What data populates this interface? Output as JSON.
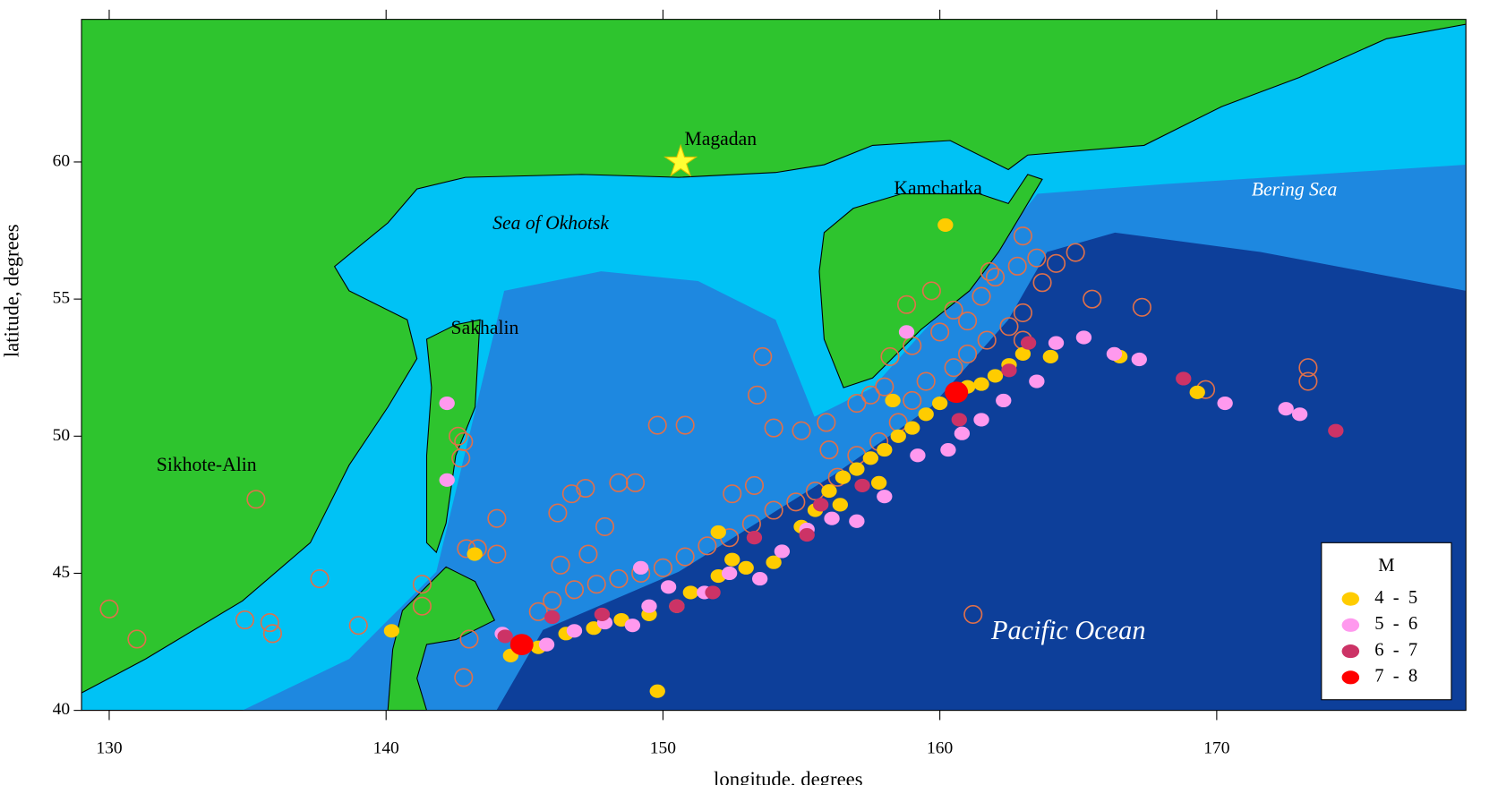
{
  "chart_data": {
    "type": "scatter",
    "xlabel": "longitude, degrees",
    "ylabel": "latitude, degrees",
    "xlim": [
      129,
      179
    ],
    "ylim": [
      40,
      65.2
    ],
    "xticks": [
      130,
      140,
      150,
      160,
      170
    ],
    "yticks": [
      40,
      45,
      50,
      55,
      60
    ],
    "legend_title": "M",
    "legend": "lower right",
    "annotations": [
      "Magadan",
      "Kamchatka",
      "Sea of Okhotsk",
      "Bering Sea",
      "Sakhalin",
      "Sikhote-Alin",
      "Pacific Ocean"
    ],
    "series": [
      {
        "color": "#e0704a",
        "x": [
          130,
          131,
          135.3,
          134.9,
          135.8,
          135.9,
          137.6,
          139,
          141.3,
          141.3,
          142.6,
          142.8,
          142.7,
          142.9,
          143.3,
          144,
          144,
          143,
          142.8,
          146.2,
          146.7,
          147.2,
          148.4,
          149,
          147.9,
          149.8,
          150.8,
          153.4,
          153.6,
          154,
          155,
          155.9,
          157,
          158,
          158.2,
          159,
          158.8,
          159.7,
          160.5,
          161,
          161.5,
          162,
          162.8,
          163,
          163.5,
          164.2,
          164.9,
          163.7,
          163,
          162.5,
          161.7,
          161,
          160.5,
          159.5,
          159,
          158.5,
          157.8,
          157,
          156.3,
          155.5,
          154.8,
          154,
          153.2,
          152.4,
          151.6,
          150.8,
          150,
          149.2,
          148.4,
          147.6,
          146.8,
          146,
          145.5,
          146.3,
          147.3,
          152.5,
          153.3,
          161.2,
          167.3,
          169.6,
          173.3,
          173.3,
          165.5,
          163,
          161.8,
          160,
          157.5,
          156
        ],
        "values": [
          43.7,
          42.6,
          47.7,
          43.3,
          43.2,
          42.8,
          44.8,
          43.1,
          44.6,
          43.8,
          50,
          49.8,
          49.2,
          45.9,
          45.9,
          47,
          45.7,
          42.6,
          41.2,
          47.2,
          47.9,
          48.1,
          48.3,
          48.3,
          46.7,
          50.4,
          50.4,
          51.5,
          52.9,
          50.3,
          50.2,
          50.5,
          51.2,
          51.8,
          52.9,
          53.3,
          54.8,
          55.3,
          54.6,
          54.2,
          55.1,
          55.8,
          56.2,
          57.3,
          56.5,
          56.3,
          56.7,
          55.6,
          54.5,
          54,
          53.5,
          53,
          52.5,
          52,
          51.3,
          50.5,
          49.8,
          49.3,
          48.5,
          48,
          47.6,
          47.3,
          46.8,
          46.3,
          46,
          45.6,
          45.2,
          45,
          44.8,
          44.6,
          44.4,
          44,
          43.6,
          45.3,
          45.7,
          47.9,
          48.2,
          43.5,
          54.7,
          51.7,
          52.5,
          52,
          55,
          53.5,
          56,
          53.8,
          51.5,
          49.5
        ]
      },
      {
        "name": "4  -  5",
        "color": "#ffcc00",
        "x": [
          144.5,
          145.5,
          146.5,
          147.5,
          148.5,
          149.5,
          150.5,
          151,
          152,
          152.5,
          153,
          154,
          155,
          155.5,
          156,
          156.5,
          157,
          157.5,
          158,
          158.5,
          159,
          159.5,
          160,
          160.5,
          161,
          161.5,
          162,
          162.5,
          163,
          164,
          166.5,
          169.3,
          140.2,
          143.2,
          152,
          149.8,
          160.2,
          158.3,
          157.8,
          156.4
        ],
        "values": [
          42.0,
          42.3,
          42.8,
          43.0,
          43.3,
          43.5,
          43.8,
          44.3,
          44.9,
          45.5,
          45.2,
          45.4,
          46.7,
          47.3,
          48.0,
          48.5,
          48.8,
          49.2,
          49.5,
          50.0,
          50.3,
          50.8,
          51.2,
          51.5,
          51.8,
          51.9,
          52.2,
          52.6,
          53.0,
          52.9,
          52.9,
          51.6,
          42.9,
          45.7,
          46.5,
          40.7,
          57.7,
          51.3,
          48.3,
          47.5
        ]
      },
      {
        "name": "5  -  6",
        "color": "#ff99ee",
        "x": [
          144.2,
          145.8,
          146.8,
          147.9,
          148.9,
          149.5,
          150.2,
          151.5,
          152.4,
          153.5,
          154.3,
          155.2,
          156.1,
          157,
          158,
          159.2,
          160.3,
          160.8,
          161.5,
          162.3,
          163.5,
          164.2,
          165.2,
          166.3,
          167.2,
          170.3,
          172.5,
          173,
          142.2,
          142.2,
          149.2,
          158.8
        ],
        "values": [
          42.8,
          42.4,
          42.9,
          43.2,
          43.1,
          43.8,
          44.5,
          44.3,
          45.0,
          44.8,
          45.8,
          46.6,
          47.0,
          46.9,
          47.8,
          49.3,
          49.5,
          50.1,
          50.6,
          51.3,
          52.0,
          53.4,
          53.6,
          53.0,
          52.8,
          51.2,
          51.0,
          50.8,
          51.2,
          48.4,
          45.2,
          53.8
        ]
      },
      {
        "name": "6  -  7",
        "color": "#cc3366",
        "x": [
          144.3,
          146,
          147.8,
          150.5,
          151.8,
          155.2,
          155.7,
          157.2,
          160.7,
          162.5,
          163.2,
          168.8,
          174.3,
          153.3
        ],
        "values": [
          42.7,
          43.4,
          43.5,
          43.8,
          44.3,
          46.4,
          47.5,
          48.2,
          50.6,
          52.4,
          53.4,
          52.1,
          50.2,
          46.3
        ]
      },
      {
        "name": "7  -  8",
        "color": "#ff0000",
        "x": [
          144.9,
          160.6
        ],
        "values": [
          42.4,
          51.6
        ]
      }
    ]
  }
}
